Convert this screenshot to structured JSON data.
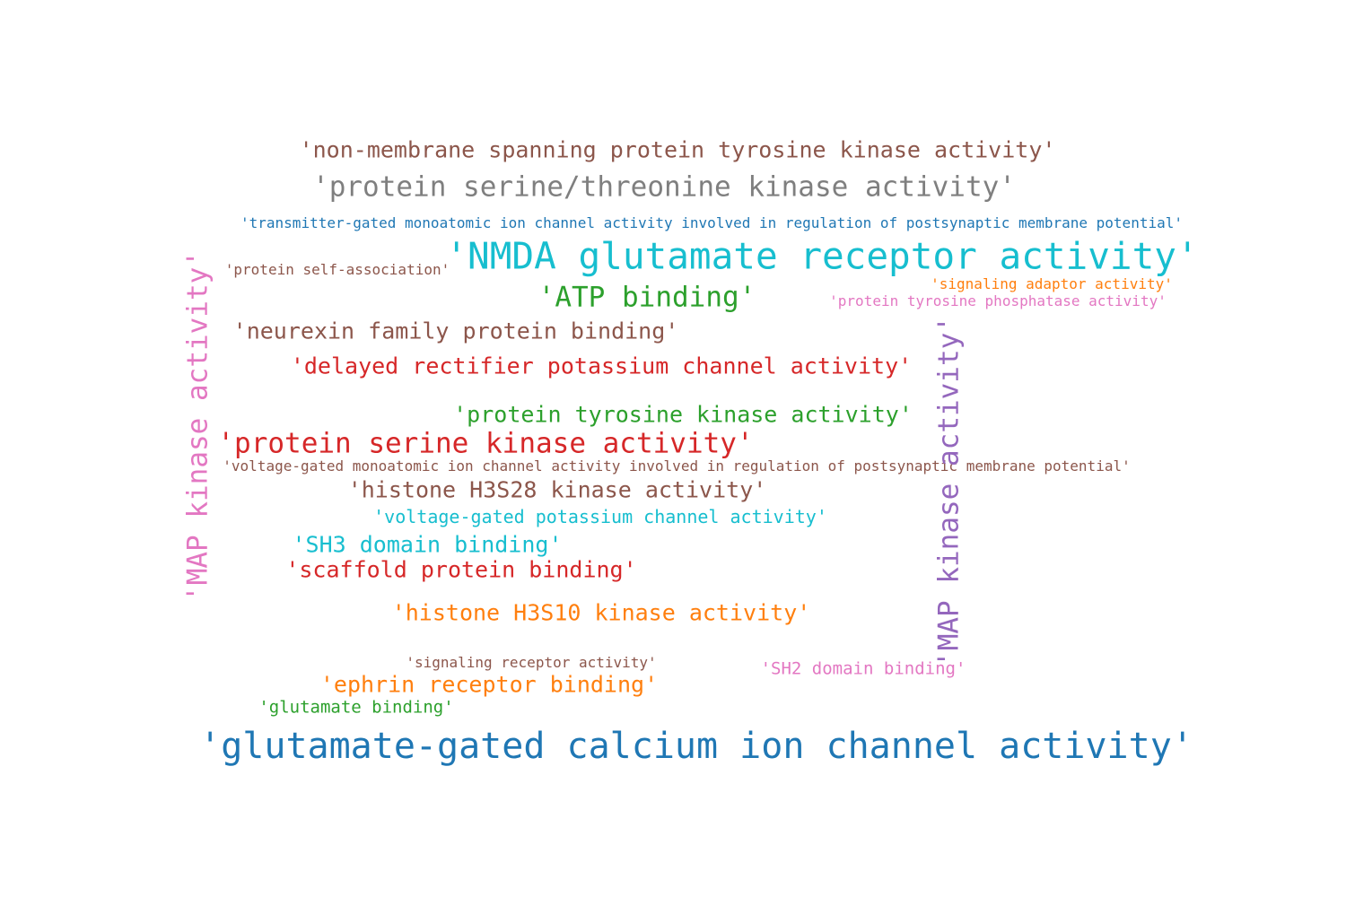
{
  "colors": {
    "blue": "#1f77b4",
    "orange": "#ff7f0e",
    "green": "#2ca02c",
    "red": "#d62728",
    "purple": "#9467bd",
    "brown": "#8c564b",
    "pink": "#e377c2",
    "gray": "#7f7f7f",
    "cyan": "#17becf"
  },
  "words": [
    "'non-membrane spanning protein tyrosine kinase activity'",
    "'protein serine/threonine kinase activity'",
    "'transmitter-gated monoatomic ion channel activity involved in regulation of postsynaptic membrane potential'",
    "'NMDA glutamate receptor activity'",
    "'protein self-association'",
    "'signaling adaptor activity'",
    "'ATP binding'",
    "'protein tyrosine phosphatase activity'",
    "'neurexin family protein binding'",
    "'delayed rectifier potassium channel activity'",
    "'protein tyrosine kinase activity'",
    "'protein serine kinase activity'",
    "'voltage-gated monoatomic ion channel activity involved in regulation of postsynaptic membrane potential'",
    "'histone H3S28 kinase activity'",
    "'voltage-gated potassium channel activity'",
    "'SH3 domain binding'",
    "'scaffold protein binding'",
    "'histone H3S10 kinase activity'",
    "'signaling receptor activity'",
    "'SH2 domain binding'",
    "'ephrin receptor binding'",
    "'glutamate binding'",
    "'glutamate-gated calcium ion channel activity'",
    "'MAP kinase activity'",
    "'MAP kinase activity'"
  ]
}
